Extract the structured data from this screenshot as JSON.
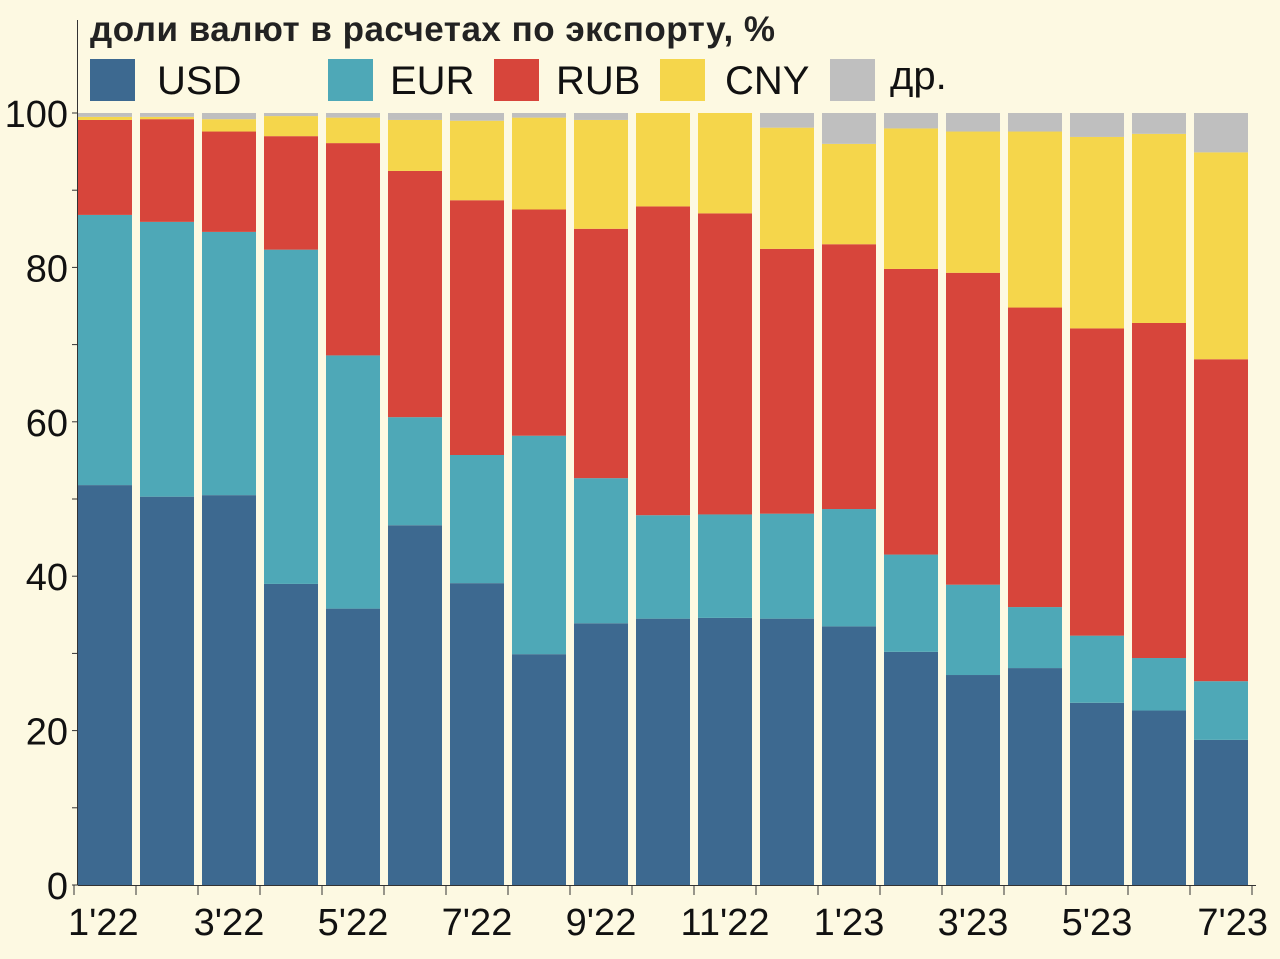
{
  "chart_data": {
    "type": "bar",
    "stacked": true,
    "title": "доли валют в расчетах по экспорту, %",
    "xlabel": "",
    "ylabel": "",
    "ylim": [
      0,
      100
    ],
    "yticks": [
      0,
      20,
      40,
      60,
      80,
      100
    ],
    "categories": [
      "1'22",
      "2'22",
      "3'22",
      "4'22",
      "5'22",
      "6'22",
      "7'22",
      "8'22",
      "9'22",
      "10'22",
      "11'22",
      "12'22",
      "1'23",
      "2'23",
      "3'23",
      "4'23",
      "5'23",
      "6'23",
      "7'23"
    ],
    "xtick_labels": [
      {
        "index": 0,
        "label": "1'22"
      },
      {
        "index": 2,
        "label": "3'22"
      },
      {
        "index": 4,
        "label": "5'22"
      },
      {
        "index": 6,
        "label": "7'22"
      },
      {
        "index": 8,
        "label": "9'22"
      },
      {
        "index": 10,
        "label": "11'22"
      },
      {
        "index": 12,
        "label": "1'23"
      },
      {
        "index": 14,
        "label": "3'23"
      },
      {
        "index": 16,
        "label": "5'23"
      },
      {
        "index": 18,
        "label": "7'23"
      }
    ],
    "legend_position": "top",
    "series": [
      {
        "name": "USD",
        "color": "#3d6990",
        "values": [
          51.8,
          50.3,
          50.5,
          39.0,
          35.8,
          46.6,
          39.1,
          29.9,
          33.9,
          34.5,
          34.6,
          34.5,
          33.5,
          30.2,
          27.2,
          28.1,
          23.6,
          22.6,
          18.8
        ]
      },
      {
        "name": "EUR",
        "color": "#4ea8b7",
        "values": [
          35.0,
          35.6,
          34.1,
          43.3,
          32.8,
          14.0,
          16.6,
          28.3,
          18.8,
          13.4,
          13.4,
          13.6,
          15.2,
          12.6,
          11.7,
          7.9,
          8.7,
          6.8,
          7.6
        ]
      },
      {
        "name": "RUB",
        "color": "#d7453b",
        "values": [
          12.3,
          13.3,
          13.0,
          14.7,
          27.5,
          31.9,
          33.0,
          29.3,
          32.3,
          40.0,
          39.0,
          34.3,
          34.3,
          37.0,
          40.4,
          38.8,
          39.8,
          43.4,
          41.7
        ]
      },
      {
        "name": "CNY",
        "color": "#f5d64b",
        "values": [
          0.4,
          0.3,
          1.6,
          2.6,
          3.3,
          6.6,
          10.3,
          11.9,
          14.1,
          12.1,
          13.0,
          15.7,
          13.0,
          18.2,
          18.3,
          22.8,
          24.8,
          24.5,
          26.8
        ]
      },
      {
        "name": "др.",
        "color": "#bfbfbf",
        "values": [
          0.5,
          0.5,
          0.8,
          0.4,
          0.6,
          0.9,
          1.0,
          0.6,
          0.9,
          0.0,
          0.0,
          1.9,
          4.0,
          2.0,
          2.4,
          2.4,
          3.1,
          2.7,
          5.1
        ]
      }
    ]
  }
}
